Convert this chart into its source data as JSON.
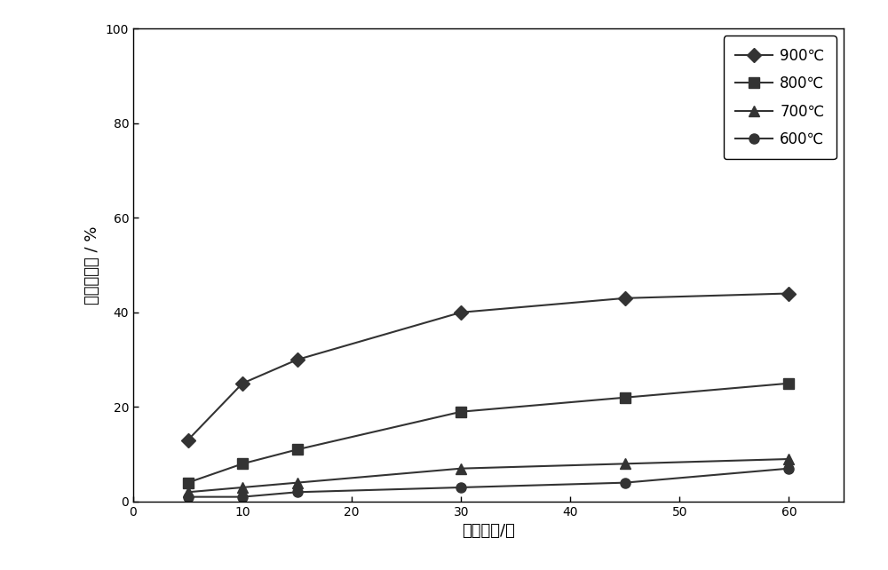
{
  "title": "",
  "xlabel": "反应时间/分",
  "ylabel": "反应转化率 / %",
  "xlim": [
    0,
    65
  ],
  "ylim": [
    0,
    100
  ],
  "xticks": [
    0,
    10,
    20,
    30,
    40,
    50,
    60
  ],
  "yticks": [
    0,
    20,
    40,
    60,
    80,
    100
  ],
  "series": [
    {
      "label": "900℃",
      "x": [
        5,
        10,
        15,
        30,
        45,
        60
      ],
      "y": [
        13,
        25,
        30,
        40,
        43,
        44
      ],
      "color": "#333333",
      "marker": "D",
      "markersize": 8,
      "linewidth": 1.5
    },
    {
      "label": "800℃",
      "x": [
        5,
        10,
        15,
        30,
        45,
        60
      ],
      "y": [
        4,
        8,
        11,
        19,
        22,
        25
      ],
      "color": "#333333",
      "marker": "s",
      "markersize": 8,
      "linewidth": 1.5
    },
    {
      "label": "700℃",
      "x": [
        5,
        10,
        15,
        30,
        45,
        60
      ],
      "y": [
        2,
        3,
        4,
        7,
        8,
        9
      ],
      "color": "#333333",
      "marker": "^",
      "markersize": 8,
      "linewidth": 1.5
    },
    {
      "label": "600℃",
      "x": [
        5,
        10,
        15,
        30,
        45,
        60
      ],
      "y": [
        1,
        1,
        2,
        3,
        4,
        7
      ],
      "color": "#333333",
      "marker": "o",
      "markersize": 8,
      "linewidth": 1.5
    }
  ],
  "legend_loc": "upper right",
  "background_color": "#ffffff",
  "axes_background": "#ffffff",
  "grid": false,
  "figure_width": 10.0,
  "figure_height": 6.42
}
